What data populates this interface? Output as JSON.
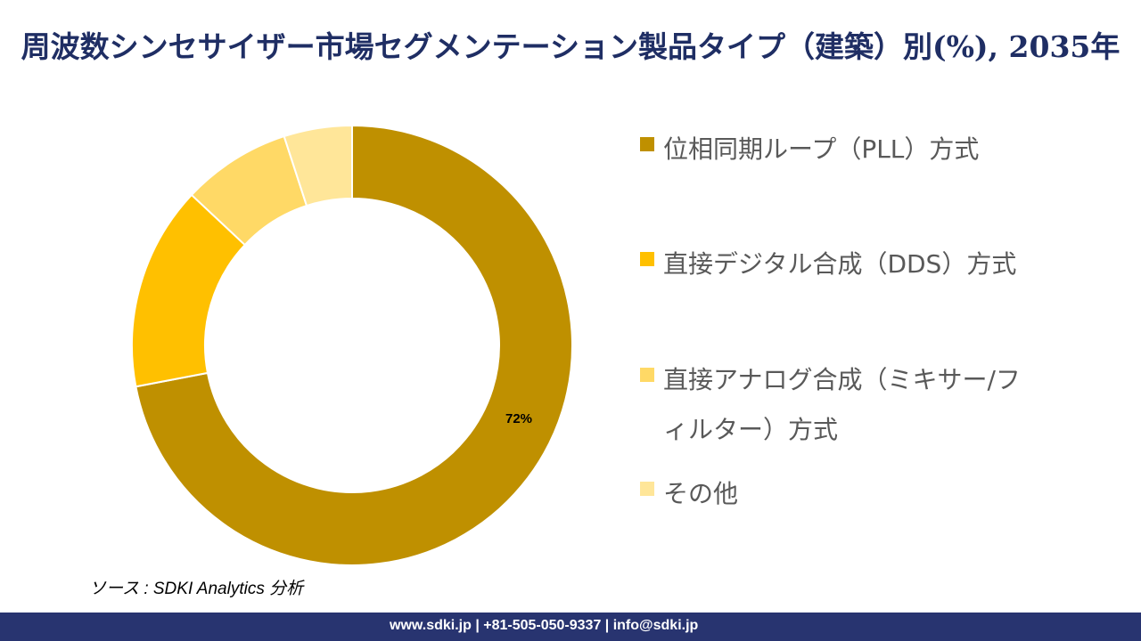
{
  "title": "周波数シンセサイザー市場セグメンテーション製品タイプ（建築）別(%), 2035年",
  "chart_data": {
    "type": "pie",
    "donut": true,
    "title": "周波数シンセサイザー市場セグメンテーション製品タイプ（建築）別(%), 2035年",
    "categories": [
      "位相同期ループ（PLL）方式",
      "直接デジタル合成（DDS）方式",
      "直接アナログ合成（ミキサー/フィルター）方式",
      "その他"
    ],
    "values": [
      72,
      15,
      8,
      5
    ],
    "colors": [
      "#BF9000",
      "#FFC000",
      "#FFD966",
      "#FFE699"
    ],
    "data_labels": [
      "72%",
      "",
      "",
      ""
    ],
    "legend_placement": "right"
  },
  "legend": [
    {
      "label": "位相同期ループ（PLL）方式",
      "color": "#BF9000"
    },
    {
      "label": "直接デジタル合成（DDS）方式",
      "color": "#FFC000"
    },
    {
      "label": "直接アナログ合成（ミキサー/フィルター）方式",
      "color": "#FFD966"
    },
    {
      "label": "その他",
      "color": "#FFE699"
    }
  ],
  "source": "ソース : SDKI Analytics 分析",
  "footer": "www.sdki.jp | +81-505-050-9337 | info@sdki.jp"
}
